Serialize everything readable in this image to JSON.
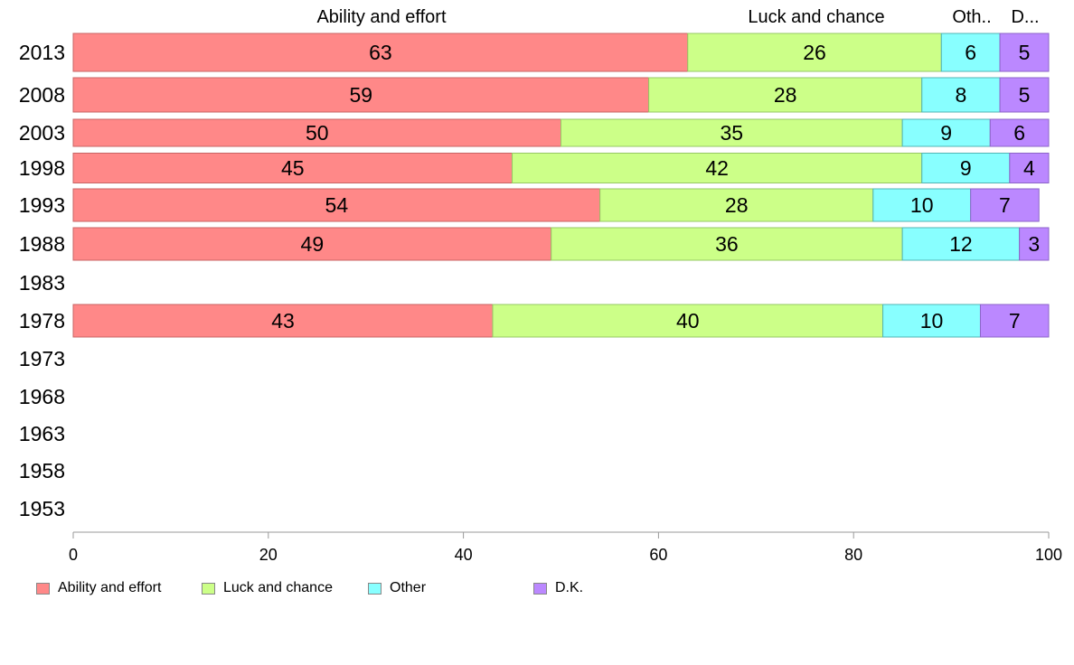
{
  "chart_data": {
    "type": "bar",
    "orientation": "horizontal",
    "stacked": true,
    "categories": [
      "2013",
      "2008",
      "2003",
      "1998",
      "1993",
      "1988",
      "1983",
      "1978",
      "1973",
      "1968",
      "1963",
      "1958",
      "1953"
    ],
    "series": [
      {
        "name": "Ability and effort",
        "color": "#ff8888",
        "values": [
          63,
          59,
          50,
          45,
          54,
          49,
          null,
          43,
          null,
          null,
          null,
          null,
          null
        ]
      },
      {
        "name": "Luck and chance",
        "color": "#ccff88",
        "values": [
          26,
          28,
          35,
          42,
          28,
          36,
          null,
          40,
          null,
          null,
          null,
          null,
          null
        ]
      },
      {
        "name": "Other",
        "color": "#88ffff",
        "values": [
          6,
          8,
          9,
          9,
          10,
          12,
          null,
          10,
          null,
          null,
          null,
          null,
          null
        ]
      },
      {
        "name": "D.K.",
        "color": "#bb88ff",
        "values": [
          5,
          5,
          6,
          4,
          7,
          3,
          null,
          7,
          null,
          null,
          null,
          null,
          null
        ]
      }
    ],
    "top_labels": [
      "Ability and effort",
      "Luck and chance",
      "Oth..",
      "D..."
    ],
    "xlim": [
      0,
      100
    ],
    "xticks": [
      0,
      20,
      40,
      60,
      80,
      100
    ],
    "grid": false,
    "legend_position": "bottom"
  }
}
